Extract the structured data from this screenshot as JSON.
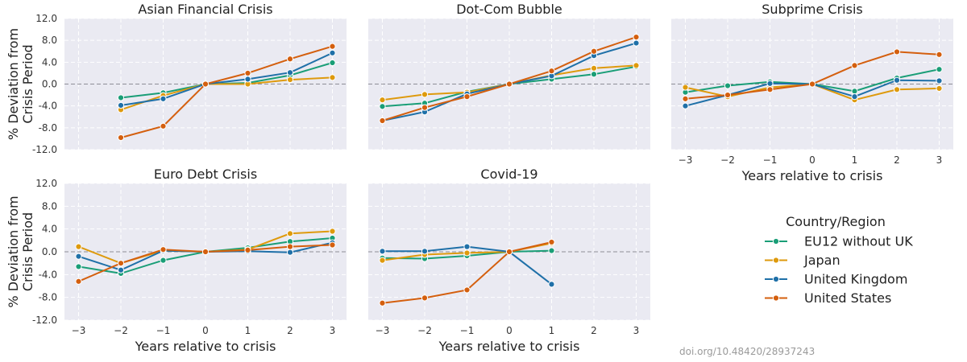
{
  "figure": {
    "ylabel": "% Deviation from\nCrisis Period",
    "xlabel": "Years relative to crisis",
    "credit": "doi.org/10.48420/28937243"
  },
  "legend": {
    "title": "Country/Region",
    "placement": "lower-right",
    "entries": [
      {
        "name": "EU12 without UK",
        "color": "#1a9e77"
      },
      {
        "name": "Japan",
        "color": "#de9a0d"
      },
      {
        "name": "United Kingdom",
        "color": "#1f70a8"
      },
      {
        "name": "United States",
        "color": "#d45f0e"
      }
    ]
  },
  "chart_data": [
    {
      "type": "line",
      "title": "Asian Financial Crisis",
      "xlabel": "",
      "ylabel": "% Deviation from Crisis Period",
      "x": [
        -3,
        -2,
        -1,
        0,
        1,
        2,
        3
      ],
      "xlim": [
        -3,
        3
      ],
      "ylim": [
        -12,
        12
      ],
      "yticks": [
        "12.0",
        "8.0",
        "4.0",
        "0.0",
        "-4.0",
        "-8.0",
        "-12.0"
      ],
      "xticks": [],
      "grid": true,
      "reference_line_y": 0,
      "series": [
        {
          "name": "EU12 without UK",
          "color": "#1a9e77",
          "x": [
            -2,
            -1,
            0,
            1,
            2,
            3
          ],
          "values": [
            -2.5,
            -1.6,
            0.0,
            0.2,
            1.6,
            3.9
          ]
        },
        {
          "name": "Japan",
          "color": "#de9a0d",
          "x": [
            -2,
            -1,
            0,
            1,
            2,
            3
          ],
          "values": [
            -4.7,
            -2.1,
            0.0,
            0.0,
            0.8,
            1.2
          ]
        },
        {
          "name": "United Kingdom",
          "color": "#1f70a8",
          "x": [
            -2,
            -1,
            0,
            1,
            2,
            3
          ],
          "values": [
            -3.9,
            -2.7,
            0.0,
            0.9,
            2.1,
            5.7
          ]
        },
        {
          "name": "United States",
          "color": "#d45f0e",
          "x": [
            -2,
            -1,
            0,
            1,
            2,
            3
          ],
          "values": [
            -9.8,
            -7.7,
            0.0,
            2.0,
            4.6,
            6.9
          ]
        }
      ]
    },
    {
      "type": "line",
      "title": "Dot-Com Bubble",
      "xlabel": "",
      "ylabel": "",
      "x": [
        -3,
        -2,
        -1,
        0,
        1,
        2,
        3
      ],
      "xlim": [
        -3,
        3
      ],
      "ylim": [
        -12,
        12
      ],
      "yticks": [],
      "xticks": [],
      "grid": true,
      "reference_line_y": 0,
      "series": [
        {
          "name": "EU12 without UK",
          "color": "#1a9e77",
          "x": [
            -3,
            -2,
            -1,
            0,
            1,
            2,
            3
          ],
          "values": [
            -4.1,
            -3.5,
            -1.4,
            0.0,
            0.9,
            1.8,
            3.2
          ]
        },
        {
          "name": "Japan",
          "color": "#de9a0d",
          "x": [
            -3,
            -2,
            -1,
            0,
            1,
            2,
            3
          ],
          "values": [
            -2.9,
            -1.9,
            -1.5,
            0.0,
            1.6,
            2.9,
            3.4
          ]
        },
        {
          "name": "United Kingdom",
          "color": "#1f70a8",
          "x": [
            -3,
            -2,
            -1,
            0,
            1,
            2,
            3
          ],
          "values": [
            -6.7,
            -5.1,
            -1.8,
            0.0,
            1.5,
            5.2,
            7.5
          ]
        },
        {
          "name": "United States",
          "color": "#d45f0e",
          "x": [
            -3,
            -2,
            -1,
            0,
            1,
            2,
            3
          ],
          "values": [
            -6.7,
            -4.3,
            -2.3,
            0.0,
            2.4,
            6.0,
            8.6
          ]
        }
      ]
    },
    {
      "type": "line",
      "title": "Subprime Crisis",
      "xlabel": "Years relative to crisis",
      "ylabel": "",
      "x": [
        -3,
        -2,
        -1,
        0,
        1,
        2,
        3
      ],
      "xlim": [
        -3,
        3
      ],
      "ylim": [
        -12,
        12
      ],
      "yticks": [],
      "xticks": [
        "−3",
        "−2",
        "−1",
        "0",
        "1",
        "2",
        "3"
      ],
      "grid": true,
      "reference_line_y": 0,
      "series": [
        {
          "name": "EU12 without UK",
          "color": "#1a9e77",
          "x": [
            -3,
            -2,
            -1,
            0,
            1,
            2,
            3
          ],
          "values": [
            -1.5,
            -0.3,
            0.4,
            0.0,
            -1.3,
            1.1,
            2.7
          ]
        },
        {
          "name": "Japan",
          "color": "#de9a0d",
          "x": [
            -3,
            -2,
            -1,
            0,
            1,
            2,
            3
          ],
          "values": [
            -0.6,
            -2.3,
            -0.6,
            0.0,
            -2.9,
            -1.0,
            -0.8
          ]
        },
        {
          "name": "United Kingdom",
          "color": "#1f70a8",
          "x": [
            -3,
            -2,
            -1,
            0,
            1,
            2,
            3
          ],
          "values": [
            -4.0,
            -2.0,
            0.1,
            0.0,
            -2.3,
            0.7,
            0.6
          ]
        },
        {
          "name": "United States",
          "color": "#d45f0e",
          "x": [
            -3,
            -2,
            -1,
            0,
            1,
            2,
            3
          ],
          "values": [
            -2.7,
            -2.0,
            -1.0,
            0.0,
            3.4,
            5.9,
            5.4
          ]
        }
      ]
    },
    {
      "type": "line",
      "title": "Euro Debt Crisis",
      "xlabel": "Years relative to crisis",
      "ylabel": "% Deviation from Crisis Period",
      "x": [
        -3,
        -2,
        -1,
        0,
        1,
        2,
        3
      ],
      "xlim": [
        -3,
        3
      ],
      "ylim": [
        -12,
        12
      ],
      "yticks": [
        "12.0",
        "8.0",
        "4.0",
        "0.0",
        "-4.0",
        "-8.0",
        "-12.0"
      ],
      "xticks": [
        "−3",
        "−2",
        "−1",
        "0",
        "1",
        "2",
        "3"
      ],
      "grid": true,
      "reference_line_y": 0,
      "series": [
        {
          "name": "EU12 without UK",
          "color": "#1a9e77",
          "x": [
            -3,
            -2,
            -1,
            0,
            1,
            2,
            3
          ],
          "values": [
            -2.6,
            -3.8,
            -1.5,
            0.0,
            0.7,
            1.8,
            2.4
          ]
        },
        {
          "name": "Japan",
          "color": "#de9a0d",
          "x": [
            -3,
            -2,
            -1,
            0,
            1,
            2,
            3
          ],
          "values": [
            0.9,
            -2.0,
            0.2,
            0.0,
            0.4,
            3.2,
            3.6
          ]
        },
        {
          "name": "United Kingdom",
          "color": "#1f70a8",
          "x": [
            -3,
            -2,
            -1,
            0,
            1,
            2,
            3
          ],
          "values": [
            -0.8,
            -3.2,
            0.2,
            0.0,
            0.1,
            -0.1,
            1.6
          ]
        },
        {
          "name": "United States",
          "color": "#d45f0e",
          "x": [
            -3,
            -2,
            -1,
            0,
            1,
            2,
            3
          ],
          "values": [
            -5.2,
            -2.0,
            0.4,
            0.0,
            0.3,
            0.9,
            1.2
          ]
        }
      ]
    },
    {
      "type": "line",
      "title": "Covid-19",
      "xlabel": "Years relative to crisis",
      "ylabel": "",
      "x": [
        -3,
        -2,
        -1,
        0,
        1,
        2,
        3
      ],
      "xlim": [
        -3,
        3
      ],
      "ylim": [
        -12,
        12
      ],
      "yticks": [],
      "xticks": [
        "−3",
        "−2",
        "−1",
        "0",
        "1",
        "2",
        "3"
      ],
      "grid": true,
      "reference_line_y": 0,
      "series": [
        {
          "name": "EU12 without UK",
          "color": "#1a9e77",
          "x": [
            -3,
            -2,
            -1,
            0,
            1
          ],
          "values": [
            -1.1,
            -1.2,
            -0.7,
            0.0,
            0.2
          ]
        },
        {
          "name": "Japan",
          "color": "#de9a0d",
          "x": [
            -3,
            -2,
            -1,
            0,
            1
          ],
          "values": [
            -1.5,
            -0.5,
            -0.2,
            0.0,
            1.5
          ]
        },
        {
          "name": "United Kingdom",
          "color": "#1f70a8",
          "x": [
            -3,
            -2,
            -1,
            0,
            1
          ],
          "values": [
            0.1,
            0.1,
            0.9,
            0.0,
            -5.7
          ]
        },
        {
          "name": "United States",
          "color": "#d45f0e",
          "x": [
            -3,
            -2,
            -1,
            0,
            1
          ],
          "values": [
            -9.0,
            -8.1,
            -6.7,
            0.0,
            1.7
          ]
        }
      ]
    }
  ]
}
